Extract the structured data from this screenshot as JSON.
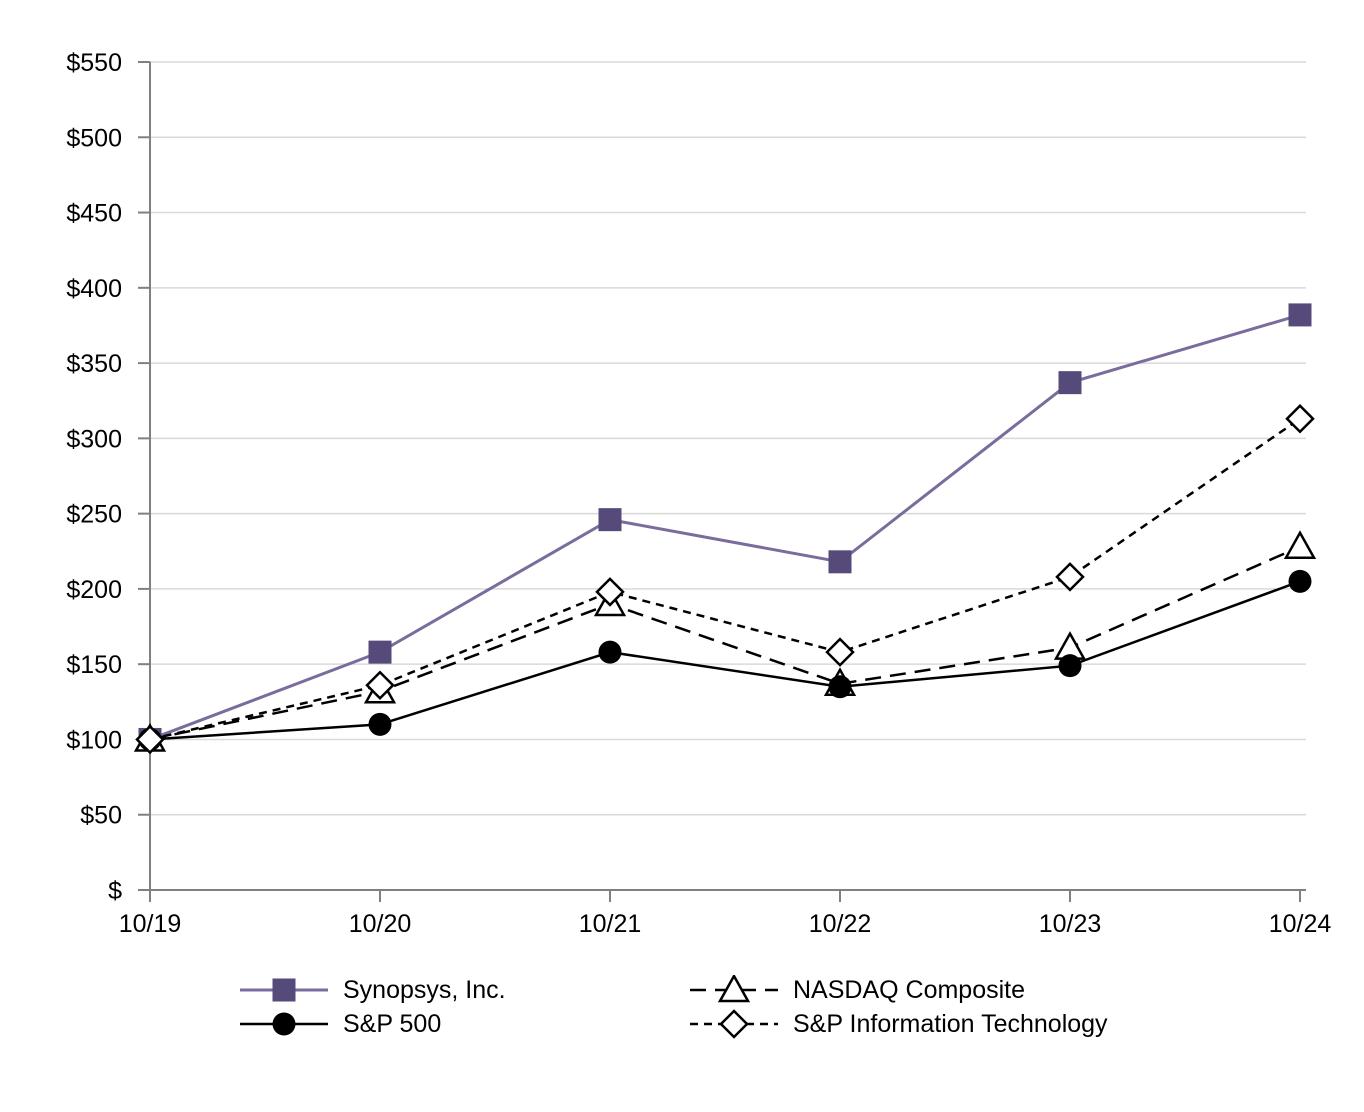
{
  "chart_data": {
    "type": "line",
    "title": "",
    "xlabel": "",
    "ylabel": "",
    "x": [
      "10/19",
      "10/20",
      "10/21",
      "10/22",
      "10/23",
      "10/24"
    ],
    "series": [
      {
        "name": "Synopsys, Inc.",
        "values": [
          100,
          158,
          246,
          218,
          337,
          382
        ],
        "marker": "square",
        "dash": "solid",
        "line_color": "#7a6c9c",
        "marker_fill": "#564a7a",
        "marker_stroke": "#564a7a",
        "line_width": 3
      },
      {
        "name": "NASDAQ Composite",
        "values": [
          100,
          132,
          190,
          137,
          161,
          228
        ],
        "marker": "triangle",
        "dash": "long-dash",
        "line_color": "#000000",
        "marker_fill": "#ffffff",
        "marker_stroke": "#000000",
        "line_width": 2.5
      },
      {
        "name": "S&P 500",
        "values": [
          100,
          110,
          158,
          135,
          149,
          205
        ],
        "marker": "circle",
        "dash": "solid",
        "line_color": "#000000",
        "marker_fill": "#000000",
        "marker_stroke": "#000000",
        "line_width": 2.5
      },
      {
        "name": "S&P Information Technology",
        "values": [
          100,
          136,
          198,
          158,
          208,
          313
        ],
        "marker": "diamond",
        "dash": "short-dash",
        "line_color": "#000000",
        "marker_fill": "#ffffff",
        "marker_stroke": "#000000",
        "line_width": 2.5
      }
    ],
    "ylim": [
      0,
      550
    ],
    "y_tick_step": 50,
    "y_tick_labels": [
      "$",
      "$50",
      "$100",
      "$150",
      "$200",
      "$250",
      "$300",
      "$350",
      "$400",
      "$450",
      "$500",
      "$550"
    ],
    "grid": true,
    "legend_position": "bottom",
    "colors": {
      "axis": "#808080",
      "grid": "#d9d9d9",
      "text": "#000000",
      "background": "#ffffff"
    }
  },
  "legend": {
    "columns": [
      {
        "items": [
          {
            "series": 0
          },
          {
            "series": 2
          }
        ]
      },
      {
        "items": [
          {
            "series": 1
          },
          {
            "series": 3
          }
        ]
      }
    ]
  }
}
